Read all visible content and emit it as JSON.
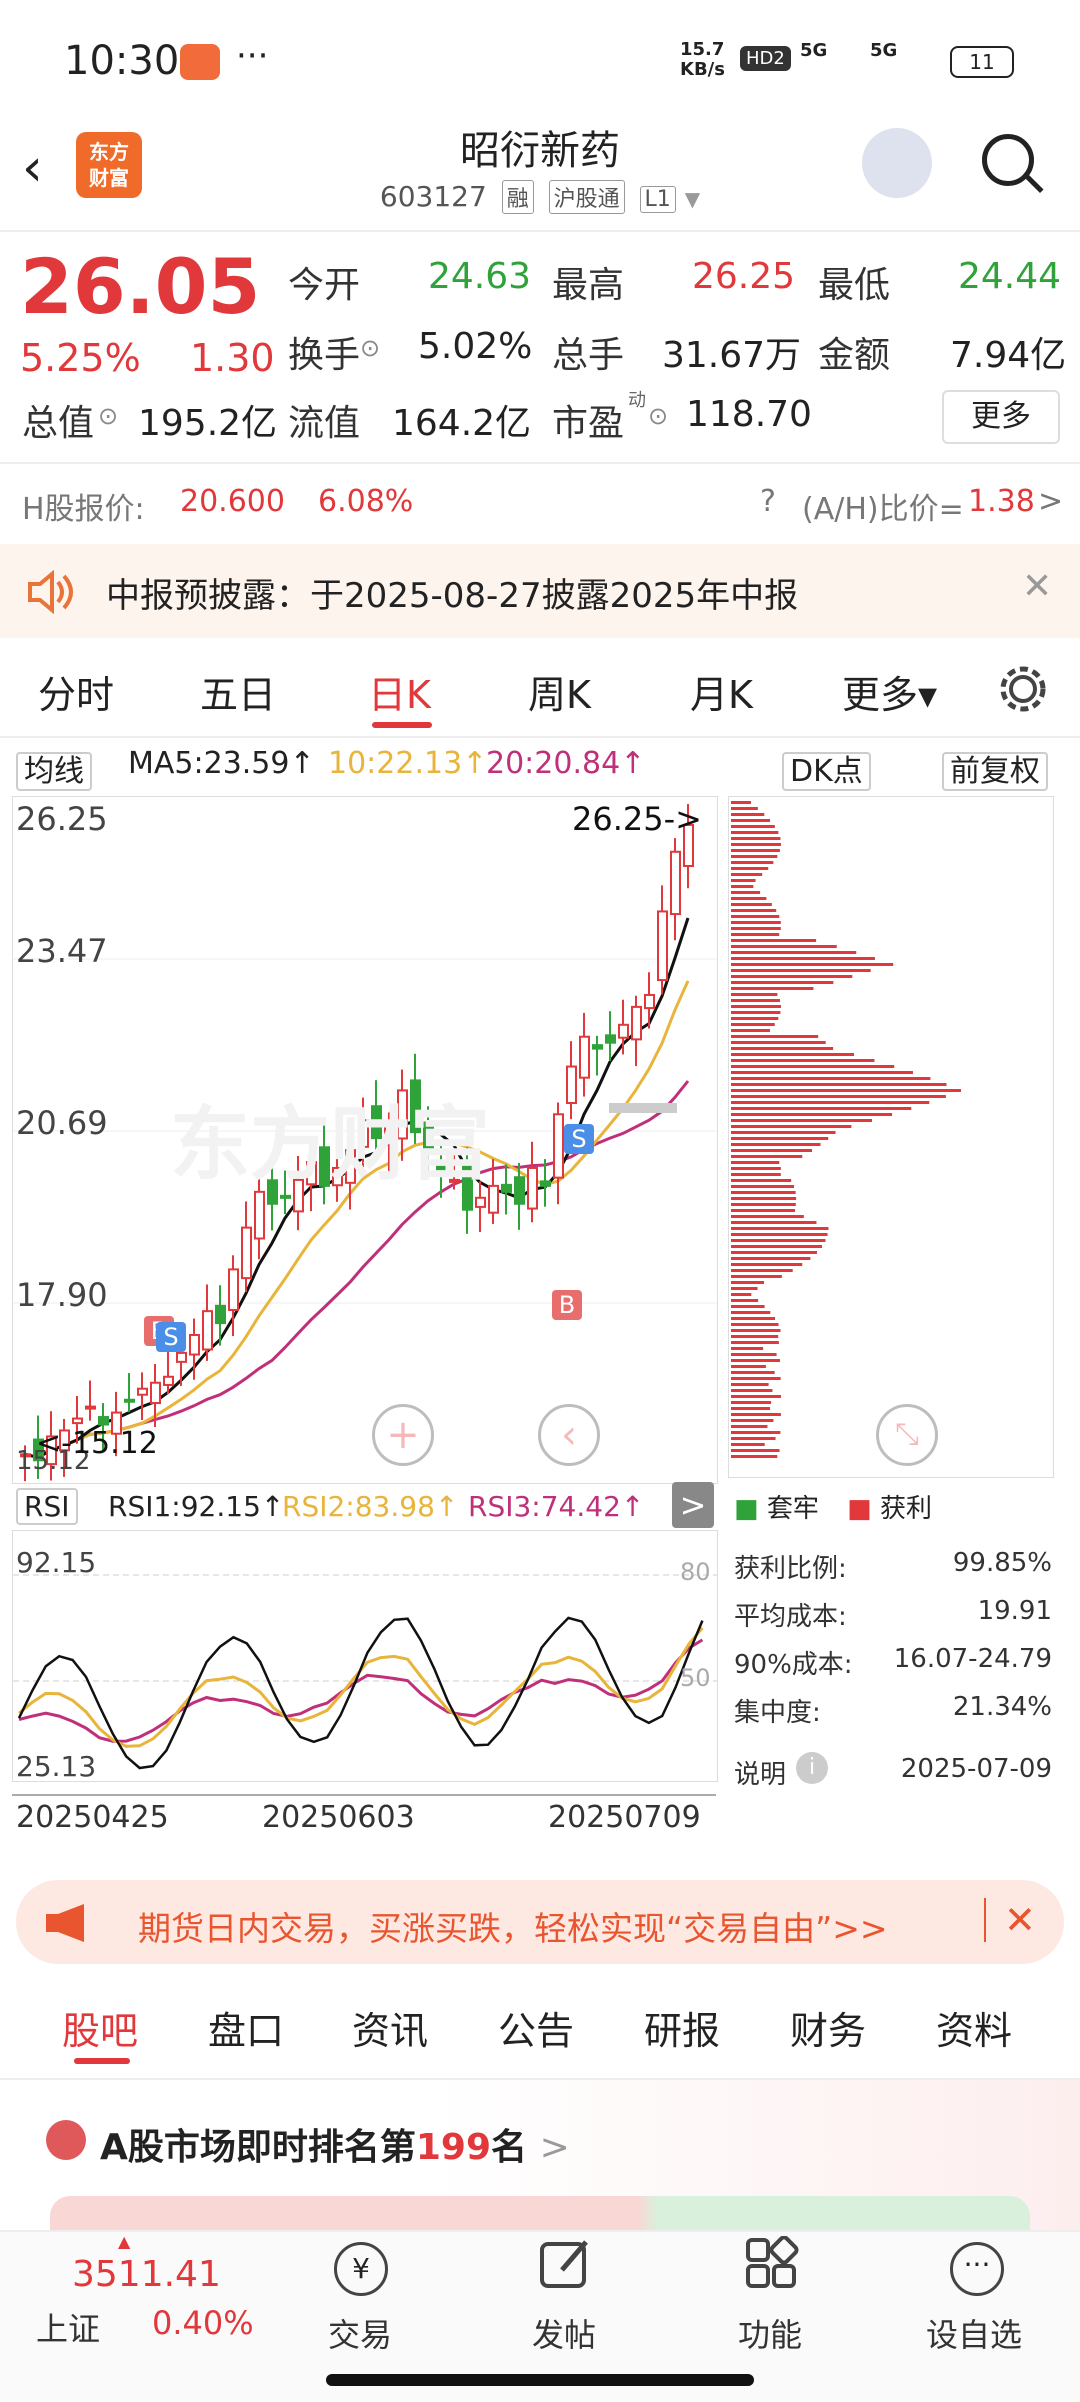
{
  "status_bar": {
    "time": "10:30",
    "more": "···",
    "net_rate": "15.7\nKB/s",
    "hd": "HD2",
    "signal1": "5G",
    "signal2": "5G",
    "battery": "11"
  },
  "header": {
    "title": "昭衍新药",
    "code": "603127",
    "tags": [
      "融",
      "沪股通",
      "L1"
    ],
    "logo": "东方\n财富"
  },
  "quote": {
    "price": "26.05",
    "pct": "5.25%",
    "change": "1.30",
    "open_label": "今开",
    "open": "24.63",
    "high_label": "最高",
    "high": "26.25",
    "low_label": "最低",
    "low": "24.44",
    "turnover_label": "换手",
    "turnover": "5.02%",
    "volume_label": "总手",
    "volume": "31.67万",
    "amount_label": "金额",
    "amount": "7.94亿",
    "mktcap_label": "总值",
    "mktcap": "195.2亿",
    "float_label": "流值",
    "float": "164.2亿",
    "pe_label": "市盈",
    "pe_sup": "动",
    "pe": "118.70",
    "more": "更多"
  },
  "hshare": {
    "label": "H股报价:",
    "price": "20.600",
    "pct": "6.08%",
    "ratio_label": "(A/H)比价=",
    "ratio": "1.38",
    "arrow": ">"
  },
  "notice": {
    "text": "中报预披露：于2025-08-27披露2025年中报",
    "close": "✕"
  },
  "chart_tabs": [
    "分时",
    "五日",
    "日K",
    "周K",
    "月K",
    "更多▾"
  ],
  "active_chart_tab": "日K",
  "indicator": {
    "ma_select": "均线",
    "ma5": "MA5:23.59↑",
    "ma10": "10:22.13↑",
    "ma20": "20:20.84↑",
    "dk": "DK点",
    "fq": "前复权"
  },
  "kline": {
    "y_labels": [
      "26.25",
      "23.47",
      "20.69",
      "17.90",
      "15.12"
    ],
    "high_marker": "26.25->",
    "low_marker": "<-15.12",
    "watermark": "东方财富",
    "marker_b": "B",
    "marker_s": "S",
    "colors": {
      "up": "#e0383b",
      "down": "#2fa33a",
      "ma5": "#111111",
      "ma10": "#e8b43a",
      "ma20": "#c0307a"
    }
  },
  "rsi": {
    "select": "RSI",
    "rsi1": "RSI1:92.15↑",
    "rsi2": "RSI2:83.98↑",
    "rsi3": "RSI3:74.42↑",
    "y_top": "92.15",
    "y_bot": "25.13",
    "mid80": "80",
    "mid50": "50",
    "arrow": ">"
  },
  "x_dates": [
    "20250425",
    "20250603",
    "20250709"
  ],
  "chip": {
    "legend_loss": "套牢",
    "legend_profit": "获利",
    "rows": [
      {
        "label": "获利比例:",
        "value": "99.85%"
      },
      {
        "label": "平均成本:",
        "value": "19.91"
      },
      {
        "label": "90%成本:",
        "value": "16.07-24.79"
      },
      {
        "label": "集中度:",
        "value": "21.34%"
      }
    ],
    "explain": "说明",
    "date": "2025-07-09"
  },
  "promo": {
    "text": "期货日内交易，买涨买跌，轻松实现“交易自由”>>",
    "close": "✕"
  },
  "bottom_tabs": [
    "股吧",
    "盘口",
    "资讯",
    "公告",
    "研报",
    "财务",
    "资料"
  ],
  "active_bottom_tab": "股吧",
  "rank": {
    "prefix": "A股市场即时排名第",
    "num": "199",
    "suffix": "名",
    "arrow": ">"
  },
  "nav": {
    "index_value": "3511.41",
    "index_name": "上证",
    "index_pct": "0.40%",
    "items": [
      "交易",
      "发帖",
      "功能",
      "设自选"
    ]
  }
}
